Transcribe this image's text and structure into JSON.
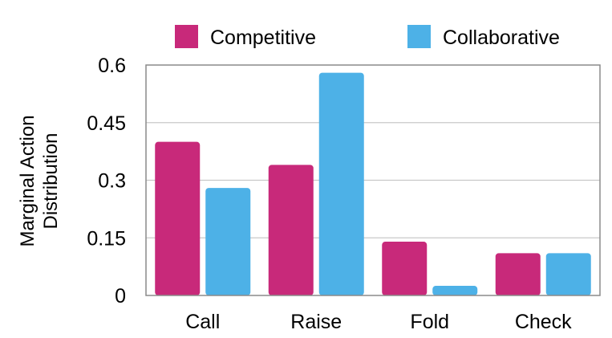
{
  "chart_data": {
    "type": "bar",
    "categories": [
      "Call",
      "Raise",
      "Fold",
      "Check"
    ],
    "series": [
      {
        "name": "Competitive",
        "values": [
          0.4,
          0.34,
          0.14,
          0.11
        ],
        "color": "#C8297A"
      },
      {
        "name": "Collaborative",
        "values": [
          0.28,
          0.58,
          0.025,
          0.11
        ],
        "color": "#4DB1E7"
      }
    ],
    "ylabel_lines": [
      "Marginal Action",
      "Distribution"
    ],
    "ylim": [
      0,
      0.6
    ],
    "yticks": [
      "0",
      "0.15",
      "0.3",
      "0.45",
      "0.6"
    ],
    "ytick_values": [
      0,
      0.15,
      0.3,
      0.45,
      0.6
    ],
    "grid": true,
    "legend_position": "top"
  }
}
